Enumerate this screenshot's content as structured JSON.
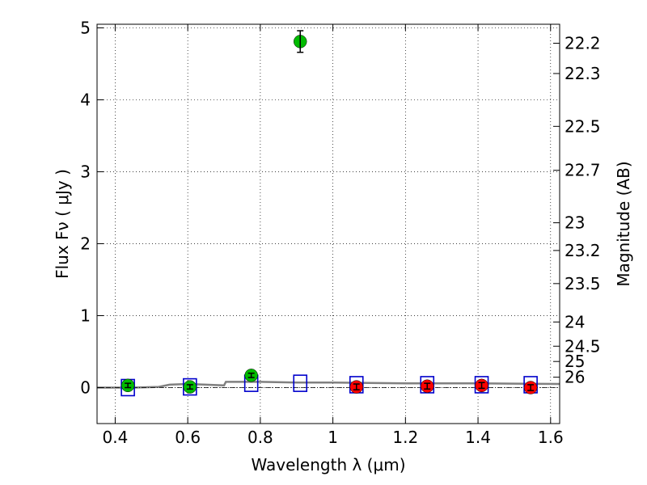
{
  "chart_data": {
    "type": "scatter",
    "xlabel": "Wavelength  λ (μm)",
    "ylabel": "Flux  Fν  ( μJy )",
    "y2label": "Magnitude (AB)",
    "xlim": [
      0.35,
      1.625
    ],
    "ylim": [
      -0.5,
      5.05
    ],
    "grid": true,
    "x_ticks": [
      {
        "value": 0.4,
        "label": "0.4"
      },
      {
        "value": 0.6,
        "label": "0.6"
      },
      {
        "value": 0.8,
        "label": "0.8"
      },
      {
        "value": 1.0,
        "label": "1"
      },
      {
        "value": 1.2,
        "label": "1.2"
      },
      {
        "value": 1.4,
        "label": "1.4"
      },
      {
        "value": 1.6,
        "label": "1.6"
      }
    ],
    "y_ticks": [
      {
        "value": 0,
        "label": "0"
      },
      {
        "value": 1,
        "label": "1"
      },
      {
        "value": 2,
        "label": "2"
      },
      {
        "value": 3,
        "label": "3"
      },
      {
        "value": 4,
        "label": "4"
      },
      {
        "value": 5,
        "label": "5"
      }
    ],
    "y2_ticks": [
      {
        "value": 22.2,
        "label": "22.2"
      },
      {
        "value": 22.3,
        "label": "22.3"
      },
      {
        "value": 22.5,
        "label": "22.5"
      },
      {
        "value": 22.7,
        "label": "22.7"
      },
      {
        "value": 23,
        "label": "23"
      },
      {
        "value": 23.2,
        "label": "23.2"
      },
      {
        "value": 23.5,
        "label": "23.5"
      },
      {
        "value": 24,
        "label": "24"
      },
      {
        "value": 24.5,
        "label": "24.5"
      },
      {
        "value": 25,
        "label": "25"
      },
      {
        "value": 26,
        "label": "26"
      }
    ],
    "detections": [
      {
        "x": 0.435,
        "y": 0.03,
        "err": 0.03
      },
      {
        "x": 0.606,
        "y": 0.01,
        "err": 0.03
      },
      {
        "x": 0.775,
        "y": 0.17,
        "err": 0.03
      },
      {
        "x": 0.91,
        "y": 4.81,
        "err": 0.15
      }
    ],
    "nir_points": [
      {
        "x": 1.065,
        "y": 0.01,
        "err": 0.04
      },
      {
        "x": 1.26,
        "y": 0.02,
        "err": 0.04
      },
      {
        "x": 1.41,
        "y": 0.03,
        "err": 0.04
      },
      {
        "x": 1.545,
        "y": 0.0,
        "err": 0.04
      }
    ],
    "model_bands": [
      {
        "x": 0.435,
        "y": 0.0
      },
      {
        "x": 0.606,
        "y": 0.01
      },
      {
        "x": 0.775,
        "y": 0.06
      },
      {
        "x": 0.91,
        "y": 0.06
      },
      {
        "x": 1.065,
        "y": 0.04
      },
      {
        "x": 1.26,
        "y": 0.04
      },
      {
        "x": 1.41,
        "y": 0.04
      },
      {
        "x": 1.545,
        "y": 0.04
      }
    ],
    "model_spectrum": {
      "x": [
        0.35,
        0.45,
        0.52,
        0.55,
        0.6,
        0.65,
        0.7,
        0.705,
        0.8,
        0.9,
        1.0,
        1.1,
        1.2,
        1.3,
        1.4,
        1.5,
        1.625
      ],
      "y": [
        0.0,
        0.0,
        0.01,
        0.04,
        0.05,
        0.04,
        0.03,
        0.08,
        0.08,
        0.07,
        0.07,
        0.065,
        0.06,
        0.06,
        0.06,
        0.055,
        0.05
      ]
    },
    "colors": {
      "detection": "#00bb00",
      "nir": "#ff0000",
      "model_band": "#0000cc",
      "spectrum": "#808080"
    }
  }
}
